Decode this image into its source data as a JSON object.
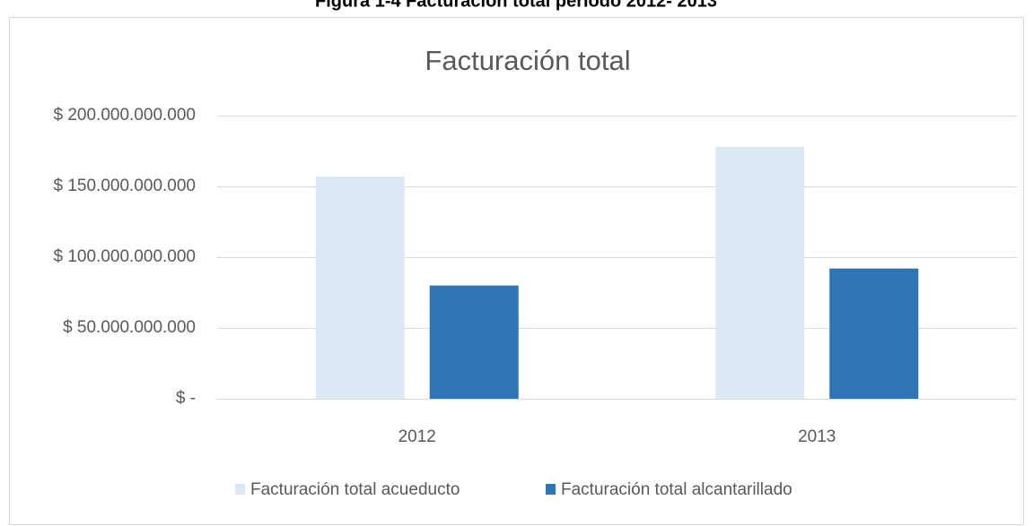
{
  "heading": "Figura 1-4 Facturación total periodo 2012- 2013",
  "chart_data": {
    "type": "bar",
    "title": "Facturación total",
    "categories": [
      "2012",
      "2013"
    ],
    "series": [
      {
        "name": "Facturación total acueducto",
        "color": "#dde8f5",
        "values": [
          157000000000,
          178000000000
        ]
      },
      {
        "name": "Facturación total alcantarillado",
        "color": "#2e75b6",
        "values": [
          80000000000,
          92000000000
        ]
      }
    ],
    "ylim": [
      0,
      200000000000
    ],
    "yticks": [
      {
        "value": 0,
        "label": "$ -"
      },
      {
        "value": 50000000000,
        "label": "$ 50.000.000.000"
      },
      {
        "value": 100000000000,
        "label": "$ 100.000.000.000"
      },
      {
        "value": 150000000000,
        "label": "$ 150.000.000.000"
      },
      {
        "value": 200000000000,
        "label": "$ 200.000.000.000"
      }
    ],
    "grid": true,
    "legend": "bottom"
  }
}
